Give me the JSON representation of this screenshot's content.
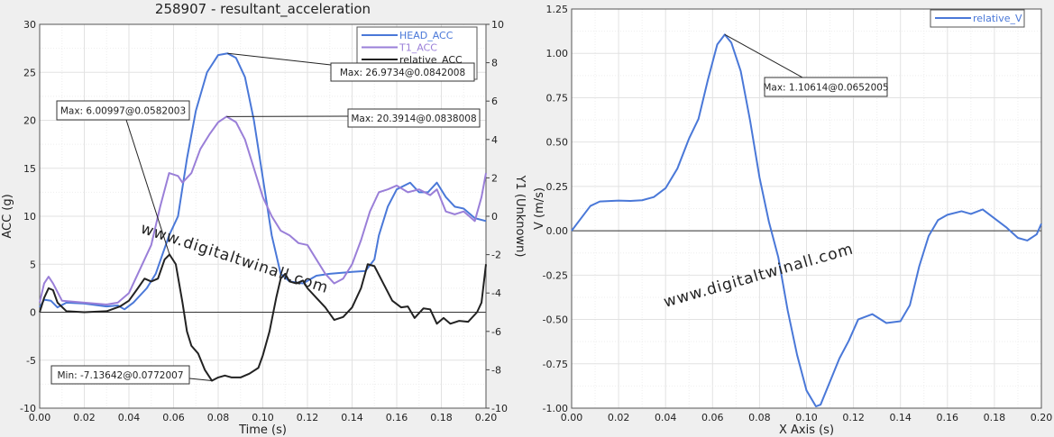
{
  "watermark": "www.digitaltwinall.com",
  "chart_data": [
    {
      "type": "line",
      "title": "258907 - resultant_acceleration",
      "xlabel": "Time (s)",
      "ylabel": "ACC (g)",
      "y2label": "Y1 (Unknown)",
      "xlim": [
        0,
        0.2
      ],
      "ylim": [
        -10,
        30
      ],
      "y2lim": [
        -10,
        10
      ],
      "xticks": [
        "0.00",
        "0.02",
        "0.04",
        "0.06",
        "0.08",
        "0.10",
        "0.12",
        "0.14",
        "0.16",
        "0.18",
        "0.20"
      ],
      "yticks": [
        "-10",
        "-5",
        "0",
        "5",
        "10",
        "15",
        "20",
        "25",
        "30"
      ],
      "y2ticks": [
        "-10",
        "-8",
        "-6",
        "-4",
        "-2",
        "0",
        "2",
        "4",
        "6",
        "8",
        "10"
      ],
      "grid": true,
      "legend_position": "top-right",
      "series": [
        {
          "name": "HEAD_ACC",
          "color": "#4a78d8",
          "points": [
            [
              0,
              0.5
            ],
            [
              0.002,
              1.3
            ],
            [
              0.005,
              1.2
            ],
            [
              0.008,
              0.5
            ],
            [
              0.012,
              1.0
            ],
            [
              0.02,
              0.9
            ],
            [
              0.03,
              0.6
            ],
            [
              0.035,
              0.7
            ],
            [
              0.038,
              0.3
            ],
            [
              0.042,
              1.0
            ],
            [
              0.048,
              2.5
            ],
            [
              0.052,
              4
            ],
            [
              0.055,
              6
            ],
            [
              0.058,
              8
            ],
            [
              0.062,
              10
            ],
            [
              0.066,
              16
            ],
            [
              0.07,
              21
            ],
            [
              0.075,
              25
            ],
            [
              0.08,
              26.8
            ],
            [
              0.0842,
              26.97
            ],
            [
              0.088,
              26.5
            ],
            [
              0.092,
              24.5
            ],
            [
              0.096,
              20
            ],
            [
              0.1,
              14
            ],
            [
              0.104,
              8
            ],
            [
              0.108,
              4
            ],
            [
              0.112,
              3.2
            ],
            [
              0.118,
              3
            ],
            [
              0.124,
              3.8
            ],
            [
              0.13,
              4
            ],
            [
              0.14,
              4.2
            ],
            [
              0.146,
              4.3
            ],
            [
              0.15,
              5.5
            ],
            [
              0.152,
              8
            ],
            [
              0.156,
              11
            ],
            [
              0.16,
              12.8
            ],
            [
              0.166,
              13.5
            ],
            [
              0.17,
              12.5
            ],
            [
              0.174,
              12.5
            ],
            [
              0.178,
              13.5
            ],
            [
              0.182,
              12
            ],
            [
              0.186,
              11
            ],
            [
              0.19,
              10.8
            ],
            [
              0.195,
              9.8
            ],
            [
              0.2,
              9.5
            ]
          ]
        },
        {
          "name": "T1_ACC",
          "color": "#9a7fd8",
          "points": [
            [
              0,
              1
            ],
            [
              0.002,
              3
            ],
            [
              0.004,
              3.7
            ],
            [
              0.006,
              3
            ],
            [
              0.01,
              1.2
            ],
            [
              0.02,
              1
            ],
            [
              0.03,
              0.8
            ],
            [
              0.035,
              1
            ],
            [
              0.04,
              2
            ],
            [
              0.045,
              4.5
            ],
            [
              0.05,
              7
            ],
            [
              0.054,
              11
            ],
            [
              0.058,
              14.5
            ],
            [
              0.062,
              14.2
            ],
            [
              0.064,
              13.5
            ],
            [
              0.068,
              14.5
            ],
            [
              0.072,
              17
            ],
            [
              0.076,
              18.5
            ],
            [
              0.08,
              19.8
            ],
            [
              0.0838,
              20.39
            ],
            [
              0.088,
              19.8
            ],
            [
              0.092,
              18
            ],
            [
              0.096,
              15
            ],
            [
              0.1,
              12
            ],
            [
              0.104,
              10
            ],
            [
              0.108,
              8.5
            ],
            [
              0.112,
              8
            ],
            [
              0.116,
              7.2
            ],
            [
              0.12,
              7
            ],
            [
              0.124,
              5.5
            ],
            [
              0.128,
              4
            ],
            [
              0.132,
              3
            ],
            [
              0.136,
              3.5
            ],
            [
              0.14,
              5
            ],
            [
              0.144,
              7.5
            ],
            [
              0.148,
              10.5
            ],
            [
              0.152,
              12.5
            ],
            [
              0.156,
              12.8
            ],
            [
              0.16,
              13.2
            ],
            [
              0.165,
              12.5
            ],
            [
              0.17,
              12.8
            ],
            [
              0.175,
              12.2
            ],
            [
              0.178,
              12.8
            ],
            [
              0.182,
              10.5
            ],
            [
              0.186,
              10.2
            ],
            [
              0.19,
              10.5
            ],
            [
              0.195,
              9.5
            ],
            [
              0.198,
              12
            ],
            [
              0.2,
              14.5
            ]
          ]
        },
        {
          "name": "relative_ACC",
          "color": "#222222",
          "points": [
            [
              0,
              0
            ],
            [
              0.002,
              1.5
            ],
            [
              0.004,
              2.5
            ],
            [
              0.006,
              2.3
            ],
            [
              0.008,
              1
            ],
            [
              0.012,
              0.1
            ],
            [
              0.02,
              0
            ],
            [
              0.03,
              0.1
            ],
            [
              0.036,
              0.6
            ],
            [
              0.04,
              1.2
            ],
            [
              0.044,
              2.5
            ],
            [
              0.047,
              3.5
            ],
            [
              0.05,
              3.2
            ],
            [
              0.053,
              3.5
            ],
            [
              0.056,
              5.5
            ],
            [
              0.0582,
              6.01
            ],
            [
              0.061,
              5
            ],
            [
              0.064,
              1
            ],
            [
              0.066,
              -2
            ],
            [
              0.068,
              -3.5
            ],
            [
              0.071,
              -4.3
            ],
            [
              0.074,
              -6
            ],
            [
              0.0772,
              -7.14
            ],
            [
              0.08,
              -6.8
            ],
            [
              0.083,
              -6.6
            ],
            [
              0.086,
              -6.8
            ],
            [
              0.09,
              -6.8
            ],
            [
              0.094,
              -6.4
            ],
            [
              0.098,
              -5.8
            ],
            [
              0.1,
              -4.5
            ],
            [
              0.103,
              -2
            ],
            [
              0.106,
              1.5
            ],
            [
              0.108,
              3.5
            ],
            [
              0.11,
              4
            ],
            [
              0.112,
              3.2
            ],
            [
              0.115,
              3
            ],
            [
              0.118,
              3.3
            ],
            [
              0.12,
              2.5
            ],
            [
              0.124,
              1.5
            ],
            [
              0.128,
              0.5
            ],
            [
              0.132,
              -0.8
            ],
            [
              0.136,
              -0.5
            ],
            [
              0.14,
              0.5
            ],
            [
              0.144,
              2.5
            ],
            [
              0.147,
              5
            ],
            [
              0.15,
              4.8
            ],
            [
              0.154,
              3
            ],
            [
              0.158,
              1.2
            ],
            [
              0.162,
              0.5
            ],
            [
              0.165,
              0.6
            ],
            [
              0.168,
              -0.6
            ],
            [
              0.172,
              0.4
            ],
            [
              0.175,
              0.3
            ],
            [
              0.178,
              -1.2
            ],
            [
              0.181,
              -0.6
            ],
            [
              0.184,
              -1.2
            ],
            [
              0.188,
              -0.9
            ],
            [
              0.192,
              -1
            ],
            [
              0.196,
              0
            ],
            [
              0.198,
              1
            ],
            [
              0.2,
              5
            ]
          ]
        }
      ],
      "annotations": [
        {
          "text": "Max: 26.9734@0.0842008",
          "x": 0.0842008,
          "y": 26.9734
        },
        {
          "text": "Max: 20.3914@0.0838008",
          "x": 0.0838008,
          "y": 20.3914
        },
        {
          "text": "Max: 6.00997@0.0582003",
          "x": 0.0582003,
          "y": 6.00997
        },
        {
          "text": "Min: -7.13642@0.0772007",
          "x": 0.0772007,
          "y": -7.13642
        }
      ]
    },
    {
      "type": "line",
      "title": "",
      "xlabel": "X Axis (s)",
      "ylabel": "V (m/s)",
      "xlim": [
        0,
        0.2
      ],
      "ylim": [
        -1,
        1.25
      ],
      "xticks": [
        "0.00",
        "0.02",
        "0.04",
        "0.06",
        "0.08",
        "0.10",
        "0.12",
        "0.14",
        "0.16",
        "0.18",
        "0.20"
      ],
      "yticks": [
        "-1.00",
        "-0.75",
        "-0.50",
        "-0.25",
        "0.00",
        "0.25",
        "0.50",
        "0.75",
        "1.00",
        "1.25"
      ],
      "grid": true,
      "legend_position": "top-right",
      "series": [
        {
          "name": "relative_V",
          "color": "#4a78d8",
          "points": [
            [
              0,
              0
            ],
            [
              0.004,
              0.07
            ],
            [
              0.008,
              0.14
            ],
            [
              0.012,
              0.165
            ],
            [
              0.02,
              0.17
            ],
            [
              0.025,
              0.168
            ],
            [
              0.03,
              0.172
            ],
            [
              0.035,
              0.19
            ],
            [
              0.04,
              0.24
            ],
            [
              0.045,
              0.35
            ],
            [
              0.05,
              0.52
            ],
            [
              0.054,
              0.63
            ],
            [
              0.058,
              0.85
            ],
            [
              0.062,
              1.05
            ],
            [
              0.0652,
              1.106
            ],
            [
              0.068,
              1.06
            ],
            [
              0.072,
              0.9
            ],
            [
              0.076,
              0.62
            ],
            [
              0.08,
              0.3
            ],
            [
              0.084,
              0.05
            ],
            [
              0.088,
              -0.15
            ],
            [
              0.092,
              -0.45
            ],
            [
              0.096,
              -0.7
            ],
            [
              0.1,
              -0.9
            ],
            [
              0.104,
              -0.99
            ],
            [
              0.106,
              -0.98
            ],
            [
              0.11,
              -0.85
            ],
            [
              0.114,
              -0.72
            ],
            [
              0.118,
              -0.62
            ],
            [
              0.122,
              -0.5
            ],
            [
              0.128,
              -0.47
            ],
            [
              0.134,
              -0.52
            ],
            [
              0.14,
              -0.51
            ],
            [
              0.144,
              -0.42
            ],
            [
              0.148,
              -0.2
            ],
            [
              0.152,
              -0.03
            ],
            [
              0.156,
              0.06
            ],
            [
              0.16,
              0.09
            ],
            [
              0.166,
              0.11
            ],
            [
              0.17,
              0.095
            ],
            [
              0.175,
              0.12
            ],
            [
              0.18,
              0.07
            ],
            [
              0.185,
              0.02
            ],
            [
              0.19,
              -0.04
            ],
            [
              0.194,
              -0.055
            ],
            [
              0.198,
              -0.02
            ],
            [
              0.2,
              0.04
            ]
          ]
        }
      ],
      "annotations": [
        {
          "text": "Max: 1.10614@0.0652005",
          "x": 0.0652005,
          "y": 1.10614
        }
      ]
    }
  ]
}
